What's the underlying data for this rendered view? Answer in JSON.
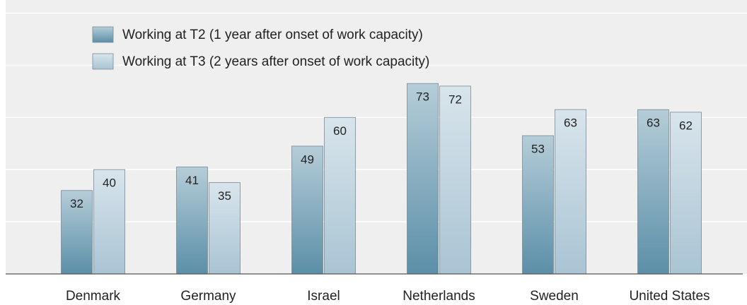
{
  "chart_data": {
    "type": "bar",
    "categories": [
      "Denmark",
      "Germany",
      "Israel",
      "Netherlands",
      "Sweden",
      "United States"
    ],
    "series": [
      {
        "name": "Working at T2 (1 year after onset of work capacity)",
        "color": "#5b8fa8",
        "values": [
          32,
          41,
          49,
          73,
          53,
          63
        ]
      },
      {
        "name": "Working at T3 (2 years after onset of work capacity)",
        "color": "#a9c4d4",
        "values": [
          40,
          35,
          60,
          72,
          63,
          62
        ]
      }
    ],
    "ylim": [
      0,
      105
    ],
    "yticks": [
      0,
      20,
      40,
      60,
      80,
      100
    ],
    "grid": true,
    "legend": "top-left"
  }
}
